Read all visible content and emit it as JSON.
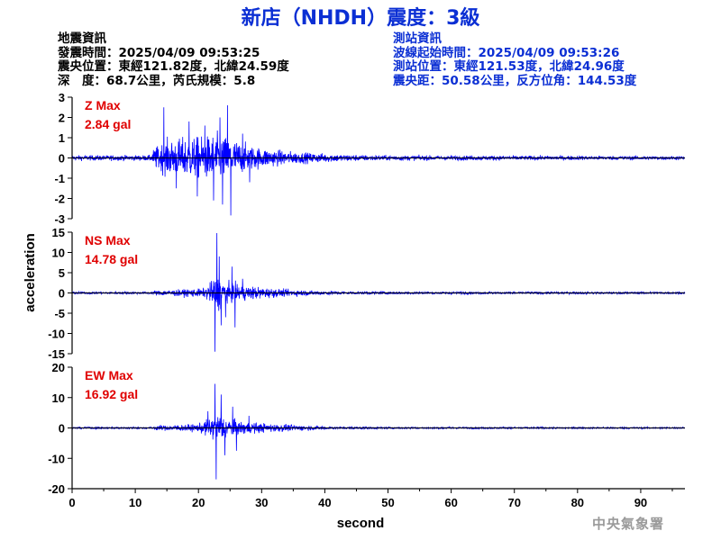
{
  "header": {
    "title": "新店（NHDH）震度：3級"
  },
  "quake_info": {
    "heading": "地震資訊",
    "origin_time": "發震時間：2025/04/09 09:53:25",
    "epicenter": "震央位置：東經121.82度，北緯24.59度",
    "depth_magnitude": "深　度：68.7公里，芮氏規模：5.8"
  },
  "station_info": {
    "heading": "測站資訊",
    "wave_start": "波線起始時間：2025/04/09 09:53:26",
    "location": "測站位置：東經121.53度，北緯24.96度",
    "distance": "震央距：50.58公里，反方位角：144.53度"
  },
  "footer": {
    "agency": "中央氣象署"
  },
  "chart_data": {
    "type": "line",
    "xlabel": "second",
    "ylabel": "acceleration",
    "xlim": [
      0,
      97
    ],
    "xticks": [
      0,
      10,
      20,
      30,
      40,
      50,
      60,
      70,
      80,
      90
    ],
    "xtick_labels": [
      "0",
      "10",
      "20",
      "30",
      "40",
      "50",
      "60",
      "70",
      "80",
      "90"
    ],
    "line_color": "#0000ff",
    "annotation_color": "#e00000",
    "panels": [
      {
        "name": "Z",
        "max_label": "Z Max",
        "max_value": "2.84 gal",
        "peak": 2.84,
        "ylim": [
          -3,
          3
        ],
        "yticks": [
          -3,
          -2,
          -1,
          0,
          1,
          2,
          3
        ],
        "ytick_labels": [
          "-3",
          "-2",
          "-1",
          "0",
          "1",
          "2",
          "3"
        ],
        "waveform": [
          {
            "t": 0,
            "a": 0.2
          },
          {
            "t": 12.5,
            "a": 0.22
          },
          {
            "t": 13,
            "a": 0.8
          },
          {
            "t": 15,
            "a": 1.4
          },
          {
            "t": 18,
            "a": 1.6
          },
          {
            "t": 21,
            "a": 1.7
          },
          {
            "t": 23,
            "a": 1.9
          },
          {
            "t": 25,
            "a": 1.6
          },
          {
            "t": 28,
            "a": 1.0
          },
          {
            "t": 30,
            "a": 0.8
          },
          {
            "t": 33,
            "a": 0.6
          },
          {
            "t": 36,
            "a": 0.45
          },
          {
            "t": 40,
            "a": 0.35
          },
          {
            "t": 45,
            "a": 0.25
          },
          {
            "t": 50,
            "a": 0.2
          },
          {
            "t": 97,
            "a": 0.15
          }
        ],
        "spikes": [
          {
            "t": 14.5,
            "v": 2.5
          },
          {
            "t": 16.5,
            "v": -1.5
          },
          {
            "t": 18.5,
            "v": 1.8
          },
          {
            "t": 19.8,
            "v": -1.9
          },
          {
            "t": 21.0,
            "v": 1.6
          },
          {
            "t": 22.4,
            "v": -2.1
          },
          {
            "t": 23.4,
            "v": 2.0
          },
          {
            "t": 23.8,
            "v": -2.3
          },
          {
            "t": 24.6,
            "v": 2.6
          },
          {
            "t": 25.1,
            "v": -2.84
          },
          {
            "t": 27.0,
            "v": 1.2
          },
          {
            "t": 28.1,
            "v": -1.2
          }
        ]
      },
      {
        "name": "NS",
        "max_label": "NS Max",
        "max_value": "14.78 gal",
        "peak": 14.78,
        "ylim": [
          -15,
          15
        ],
        "yticks": [
          -15,
          -10,
          -5,
          0,
          5,
          10,
          15
        ],
        "ytick_labels": [
          "-15",
          "-10",
          "-5",
          "0",
          "5",
          "10",
          "15"
        ],
        "waveform": [
          {
            "t": 0,
            "a": 0.5
          },
          {
            "t": 12.5,
            "a": 0.5
          },
          {
            "t": 13,
            "a": 1.0
          },
          {
            "t": 17,
            "a": 1.3
          },
          {
            "t": 21,
            "a": 1.8
          },
          {
            "t": 22.5,
            "a": 6.0
          },
          {
            "t": 23.5,
            "a": 7.0
          },
          {
            "t": 24.5,
            "a": 4.0
          },
          {
            "t": 26,
            "a": 3.5
          },
          {
            "t": 29,
            "a": 2.5
          },
          {
            "t": 33,
            "a": 1.5
          },
          {
            "t": 38,
            "a": 1.0
          },
          {
            "t": 43,
            "a": 0.7
          },
          {
            "t": 50,
            "a": 0.5
          },
          {
            "t": 97,
            "a": 0.4
          }
        ],
        "spikes": [
          {
            "t": 22.9,
            "v": 14.78
          },
          {
            "t": 22.6,
            "v": -14.5
          },
          {
            "t": 23.3,
            "v": 9.0
          },
          {
            "t": 23.6,
            "v": -8.0
          },
          {
            "t": 25.3,
            "v": 6.5
          },
          {
            "t": 25.8,
            "v": -8.5
          },
          {
            "t": 27.0,
            "v": 3.5
          },
          {
            "t": 24.3,
            "v": -6.0
          }
        ]
      },
      {
        "name": "EW",
        "max_label": "EW Max",
        "max_value": "16.92 gal",
        "peak": 16.92,
        "ylim": [
          -20,
          20
        ],
        "yticks": [
          -20,
          -10,
          0,
          10,
          20
        ],
        "ytick_labels": [
          "-20",
          "-10",
          "0",
          "10",
          "20"
        ],
        "waveform": [
          {
            "t": 0,
            "a": 0.5
          },
          {
            "t": 12.5,
            "a": 0.5
          },
          {
            "t": 13,
            "a": 1.2
          },
          {
            "t": 16,
            "a": 1.6
          },
          {
            "t": 20,
            "a": 2.0
          },
          {
            "t": 22.2,
            "a": 6.0
          },
          {
            "t": 23.5,
            "a": 7.5
          },
          {
            "t": 25,
            "a": 4.5
          },
          {
            "t": 27,
            "a": 3.5
          },
          {
            "t": 30,
            "a": 2.5
          },
          {
            "t": 34,
            "a": 1.8
          },
          {
            "t": 38,
            "a": 1.2
          },
          {
            "t": 42,
            "a": 0.7
          },
          {
            "t": 50,
            "a": 0.5
          },
          {
            "t": 97,
            "a": 0.4
          }
        ],
        "spikes": [
          {
            "t": 22.6,
            "v": 14.5
          },
          {
            "t": 22.8,
            "v": -16.92
          },
          {
            "t": 23.6,
            "v": 11.0
          },
          {
            "t": 24.2,
            "v": -9.0
          },
          {
            "t": 25.4,
            "v": 7.0
          },
          {
            "t": 26.0,
            "v": -7.5
          },
          {
            "t": 21.5,
            "v": 5.5
          },
          {
            "t": 28.0,
            "v": 4.0
          }
        ]
      }
    ]
  }
}
